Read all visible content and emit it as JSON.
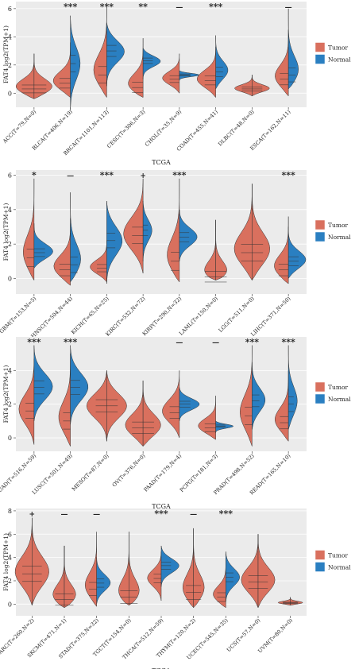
{
  "colors": {
    "tumor": "#d9705e",
    "normal": "#2a7fc1",
    "panel_bg": "#ebebeb",
    "grid": "#ffffff"
  },
  "chart_data": [
    {
      "type": "violin",
      "xlabel": "TCGA",
      "ylabel": "FAT4  log2(TPM+1)",
      "ylim": [
        -1,
        6.5
      ],
      "yticks": [
        0,
        2,
        4,
        6
      ],
      "legend": {
        "position": "right",
        "entries": [
          "Tumor",
          "Normal"
        ]
      },
      "categories": [
        {
          "label": "ACC(T=79,N=0)",
          "sig": "",
          "tumor": {
            "median": 0.3,
            "min": -0.4,
            "max": 2.8,
            "width": 0.5
          },
          "normal": null
        },
        {
          "label": "BLCA(T=406,N=19)",
          "sig": "***",
          "tumor": {
            "median": 0.7,
            "min": -0.3,
            "max": 3.6,
            "width": 0.45
          },
          "normal": {
            "median": 2.1,
            "min": -1.2,
            "max": 5.5,
            "width": 0.22
          }
        },
        {
          "label": "BRCA(T=1101,N=113)",
          "sig": "***",
          "tumor": {
            "median": 1.3,
            "min": -0.3,
            "max": 6.4,
            "width": 0.35
          },
          "normal": {
            "median": 3.0,
            "min": 0.5,
            "max": 5.0,
            "width": 0.4
          }
        },
        {
          "label": "CESC(T=306,N=3)",
          "sig": "**",
          "tumor": {
            "median": 0.4,
            "min": -0.3,
            "max": 3.9,
            "width": 0.45
          },
          "normal": {
            "median": 2.3,
            "min": 1.0,
            "max": 3.2,
            "width": 0.4
          }
        },
        {
          "label": "CHOL(T=35,N=9)",
          "sig": "—",
          "tumor": {
            "median": 1.0,
            "min": 0.0,
            "max": 2.8,
            "width": 0.4
          },
          "normal": {
            "median": 1.3,
            "min": 0.9,
            "max": 1.6,
            "width": 0.45
          }
        },
        {
          "label": "COAD(T=455,N=41)",
          "sig": "***",
          "tumor": {
            "median": 0.9,
            "min": -0.3,
            "max": 3.3,
            "width": 0.45
          },
          "normal": {
            "median": 1.5,
            "min": 0.3,
            "max": 4.1,
            "width": 0.3
          }
        },
        {
          "label": "DLBC(T=48,N=0)",
          "sig": "",
          "tumor": {
            "median": 0.3,
            "min": -0.2,
            "max": 1.3,
            "width": 0.42
          },
          "normal": null
        },
        {
          "label": "ESCA(T=162,N=11)",
          "sig": "—",
          "tumor": {
            "median": 1.0,
            "min": -0.2,
            "max": 4.5,
            "width": 0.35
          },
          "normal": {
            "median": 1.3,
            "min": 0.3,
            "max": 6.0,
            "width": 0.3
          }
        }
      ]
    },
    {
      "type": "violin",
      "xlabel": "TCGA",
      "ylabel": "FAT4  log2(TPM+1)",
      "ylim": [
        -0.9,
        6.3
      ],
      "yticks": [
        0,
        2,
        4,
        6
      ],
      "legend": {
        "position": "right",
        "entries": [
          "Tumor",
          "Normal"
        ]
      },
      "categories": [
        {
          "label": "GBM(T=153,N=5)",
          "sig": "*",
          "tumor": {
            "median": 1.2,
            "min": -0.1,
            "max": 5.8,
            "width": 0.3
          },
          "normal": {
            "median": 1.5,
            "min": 0.6,
            "max": 3.2,
            "width": 0.45
          }
        },
        {
          "label": "HNSC(T=504,N=44)",
          "sig": "—",
          "tumor": {
            "median": 0.5,
            "min": -0.4,
            "max": 3.5,
            "width": 0.45
          },
          "normal": {
            "median": 0.8,
            "min": -0.2,
            "max": 5.0,
            "width": 0.3
          }
        },
        {
          "label": "KICH(T=65,N=25)",
          "sig": "***",
          "tumor": {
            "median": 0.6,
            "min": -0.2,
            "max": 2.2,
            "width": 0.4
          },
          "normal": {
            "median": 2.2,
            "min": -0.3,
            "max": 4.5,
            "width": 0.35
          }
        },
        {
          "label": "KIRC(T=532,N=72)",
          "sig": "+",
          "tumor": {
            "median": 2.5,
            "min": 0.3,
            "max": 5.8,
            "width": 0.45
          },
          "normal": {
            "median": 2.8,
            "min": 1.0,
            "max": 4.5,
            "width": 0.2
          }
        },
        {
          "label": "KIRP(T=290,N=32)",
          "sig": "***",
          "tumor": {
            "median": 1.0,
            "min": -0.2,
            "max": 5.8,
            "width": 0.35
          },
          "normal": {
            "median": 2.4,
            "min": 1.0,
            "max": 4.0,
            "width": 0.4
          }
        },
        {
          "label": "LAML(T=150,N=0)",
          "sig": "",
          "tumor": {
            "median": 0.1,
            "min": -0.1,
            "max": 3.4,
            "width": 0.45
          },
          "normal": null
        },
        {
          "label": "LGG(T=511,N=0)",
          "sig": "",
          "tumor": {
            "median": 1.5,
            "min": -0.1,
            "max": 5.5,
            "width": 0.45
          },
          "normal": null
        },
        {
          "label": "LIHC(T=371,N=50)",
          "sig": "***",
          "tumor": {
            "median": 0.5,
            "min": -0.3,
            "max": 3.6,
            "width": 0.4
          },
          "normal": {
            "median": 1.0,
            "min": 0.0,
            "max": 3.0,
            "width": 0.42
          }
        }
      ]
    },
    {
      "type": "violin",
      "xlabel": "TCGA",
      "ylabel": "FAT4  log2(TPM+1)",
      "ylim": [
        -0.8,
        6.0
      ],
      "yticks": [
        0,
        2,
        4
      ],
      "legend": {
        "position": "right",
        "entries": [
          "Tumor",
          "Normal"
        ]
      },
      "categories": [
        {
          "label": "LUAD(T=516,N=59)",
          "sig": "***",
          "tumor": {
            "median": 1.6,
            "min": -0.4,
            "max": 4.7,
            "width": 0.35
          },
          "normal": {
            "median": 3.0,
            "min": 1.0,
            "max": 5.5,
            "width": 0.42
          }
        },
        {
          "label": "LUSC(T=501,N=49)",
          "sig": "***",
          "tumor": {
            "median": 1.0,
            "min": -0.5,
            "max": 5.0,
            "width": 0.3
          },
          "normal": {
            "median": 3.0,
            "min": 0.8,
            "max": 5.5,
            "width": 0.4
          }
        },
        {
          "label": "MESO(T=87,N=0)",
          "sig": "",
          "tumor": {
            "median": 1.9,
            "min": -0.2,
            "max": 4.0,
            "width": 0.45
          },
          "normal": null
        },
        {
          "label": "OV(T=376,N=0)",
          "sig": "",
          "tumor": {
            "median": 0.6,
            "min": -0.5,
            "max": 3.4,
            "width": 0.45
          },
          "normal": null
        },
        {
          "label": "PAAD(T=179,N=4)",
          "sig": "—",
          "tumor": {
            "median": 1.5,
            "min": 0.0,
            "max": 4.0,
            "width": 0.4
          },
          "normal": {
            "median": 2.0,
            "min": 1.0,
            "max": 3.0,
            "width": 0.45
          }
        },
        {
          "label": "PCPG(T=181,N=3)",
          "sig": "—",
          "tumor": {
            "median": 0.6,
            "min": -0.1,
            "max": 2.5,
            "width": 0.45
          },
          "normal": {
            "median": 0.7,
            "min": 0.3,
            "max": 1.0,
            "width": 0.4
          }
        },
        {
          "label": "PRAD(T=498,N=52)",
          "sig": "***",
          "tumor": {
            "median": 1.3,
            "min": -0.5,
            "max": 5.5,
            "width": 0.3
          },
          "normal": {
            "median": 2.2,
            "min": 0.5,
            "max": 4.5,
            "width": 0.3
          }
        },
        {
          "label": "READ(T=165,N=10)",
          "sig": "***",
          "tumor": {
            "median": 0.9,
            "min": -0.2,
            "max": 4.0,
            "width": 0.35
          },
          "normal": {
            "median": 2.0,
            "min": 0.5,
            "max": 5.5,
            "width": 0.22
          }
        }
      ]
    },
    {
      "type": "violin",
      "xlabel": "TCGA",
      "ylabel": "FAT4  log2(TPM+1)",
      "ylim": [
        -1,
        8.2
      ],
      "yticks": [
        0,
        2,
        4,
        6,
        8
      ],
      "legend": {
        "position": "right",
        "entries": [
          "Tumor",
          "Normal"
        ]
      },
      "categories": [
        {
          "label": "SARC(T=260,N=2)",
          "sig": "+",
          "tumor": {
            "median": 2.6,
            "min": -0.1,
            "max": 7.4,
            "width": 0.45
          },
          "normal": null
        },
        {
          "label": "SKCM(T=471,N=1)",
          "sig": "—",
          "tumor": {
            "median": 0.4,
            "min": -0.3,
            "max": 5.0,
            "width": 0.42
          },
          "normal": null
        },
        {
          "label": "STAD(T=375,N=32)",
          "sig": "—",
          "tumor": {
            "median": 1.3,
            "min": -0.2,
            "max": 6.2,
            "width": 0.35
          },
          "normal": {
            "median": 1.8,
            "min": 0.0,
            "max": 4.0,
            "width": 0.35
          }
        },
        {
          "label": "TGCT(T=154,N=0)",
          "sig": "",
          "tumor": {
            "median": 0.6,
            "min": -0.1,
            "max": 6.2,
            "width": 0.4
          },
          "normal": null
        },
        {
          "label": "THCA(T=512,N=59)",
          "sig": "***",
          "tumor": {
            "median": 2.2,
            "min": 0.3,
            "max": 4.5,
            "width": 0.35
          },
          "normal": {
            "median": 3.3,
            "min": 1.5,
            "max": 5.0,
            "width": 0.45
          }
        },
        {
          "label": "THYM(T=120,N=2)",
          "sig": "—",
          "tumor": {
            "median": 1.0,
            "min": -0.3,
            "max": 6.5,
            "width": 0.35
          },
          "normal": null
        },
        {
          "label": "UCEC(T=545,N=35)",
          "sig": "***",
          "tumor": {
            "median": 0.6,
            "min": -0.3,
            "max": 4.0,
            "width": 0.4
          },
          "normal": {
            "median": 2.3,
            "min": 0.2,
            "max": 4.5,
            "width": 0.35
          }
        },
        {
          "label": "UCS(T=57,N=0)",
          "sig": "",
          "tumor": {
            "median": 1.9,
            "min": -0.3,
            "max": 6.0,
            "width": 0.45
          },
          "normal": null
        },
        {
          "label": "UVM(T=80,N=0)",
          "sig": "",
          "tumor": {
            "median": 0.1,
            "min": -0.1,
            "max": 0.6,
            "width": 0.35
          },
          "normal": null
        }
      ]
    }
  ]
}
